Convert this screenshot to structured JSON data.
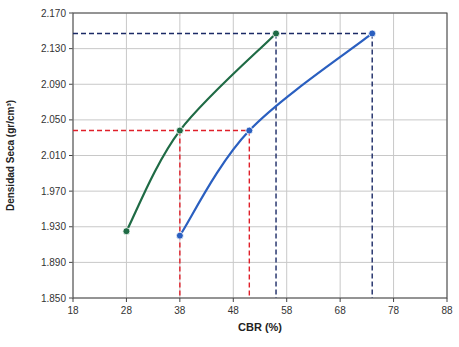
{
  "chart_data": {
    "type": "line",
    "x_label": "CBR (%)",
    "y_label": "Densidad Seca (gr/cm³)",
    "xlim": [
      18,
      88
    ],
    "xticks": [
      18,
      28,
      38,
      48,
      58,
      68,
      78,
      88
    ],
    "ylim": [
      1.85,
      2.17
    ],
    "yticks": [
      {
        "value": 1.85,
        "label": "1.850"
      },
      {
        "value": 1.89,
        "label": "1.890"
      },
      {
        "value": 1.93,
        "label": "1.930"
      },
      {
        "value": 1.97,
        "label": "1.970"
      },
      {
        "value": 2.01,
        "label": "2.010"
      },
      {
        "value": 2.05,
        "label": "2.050"
      },
      {
        "value": 2.09,
        "label": "2.090"
      },
      {
        "value": 2.13,
        "label": "2.130"
      },
      {
        "value": 2.17,
        "label": "2.170"
      }
    ],
    "grid": true,
    "series": [
      {
        "color": "#1f6b45",
        "marker": "circle",
        "x": [
          28,
          38,
          56
        ],
        "values": [
          1.925,
          2.038,
          2.147
        ]
      },
      {
        "color": "#2a5fc0",
        "marker": "circle",
        "x": [
          38,
          51,
          74
        ],
        "values": [
          1.92,
          2.038,
          2.147
        ]
      }
    ],
    "reference_lines": [
      {
        "y": 2.038,
        "x": [
          38,
          51
        ],
        "color": "#e0202a"
      },
      {
        "y": 2.147,
        "x": [
          56,
          74
        ],
        "color": "#1b2a66"
      }
    ]
  }
}
